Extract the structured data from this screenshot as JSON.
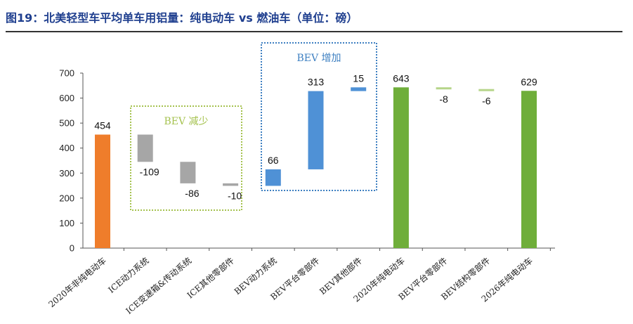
{
  "title": "图19：北美轻型车平均单车用铝量：纯电动车 vs 燃油车（单位：磅）",
  "chart_data": {
    "type": "waterfall",
    "title": "图19：北美轻型车平均单车用铝量：纯电动车 vs 燃油车（单位：磅）",
    "ylim": [
      0,
      700
    ],
    "yticks": [
      "0",
      "100",
      "200",
      "300",
      "400",
      "500",
      "600",
      "700"
    ],
    "categories": [
      "2020年非纯电动车",
      "ICE动力系统",
      "ICE变速箱&传动系统",
      "ICE其他零部件",
      "BEV动力系统",
      "BEV平台零部件",
      "BEV其他部件",
      "2020年纯电动车",
      "BEV平台零部件",
      "BEV结构零部件",
      "2026年纯电动车"
    ],
    "bars": [
      {
        "start": 0,
        "end": 454,
        "label": "454",
        "kind": "total"
      },
      {
        "start": 454,
        "end": 345,
        "label": "-109",
        "kind": "decrease"
      },
      {
        "start": 345,
        "end": 259,
        "label": "-86",
        "kind": "decrease"
      },
      {
        "start": 259,
        "end": 249,
        "label": "-10",
        "kind": "decrease"
      },
      {
        "start": 249,
        "end": 315,
        "label": "66",
        "kind": "increase"
      },
      {
        "start": 315,
        "end": 628,
        "label": "313",
        "kind": "increase"
      },
      {
        "start": 628,
        "end": 643,
        "label": "15",
        "kind": "increase"
      },
      {
        "start": 0,
        "end": 643,
        "label": "643",
        "kind": "total-bev"
      },
      {
        "start": 643,
        "end": 635,
        "label": "-8",
        "kind": "minor"
      },
      {
        "start": 635,
        "end": 629,
        "label": "-6",
        "kind": "minor"
      },
      {
        "start": 0,
        "end": 629,
        "label": "629",
        "kind": "total-bev"
      }
    ],
    "annotations": [
      {
        "text": "BEV 减少",
        "group": "decrease"
      },
      {
        "text": "BEV 增加",
        "group": "increase"
      }
    ],
    "colors": {
      "total": "#ef7d2b",
      "decrease": "#a6a6a6",
      "increase": "#4f91d6",
      "total-bev": "#6fae3a",
      "minor": "#b6d58a",
      "decrease_box": "#a5c24f",
      "increase_box": "#3d7fc1",
      "axis": "#555555"
    }
  }
}
